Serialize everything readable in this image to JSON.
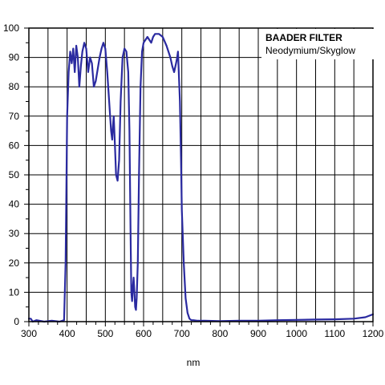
{
  "chart_data": {
    "type": "line",
    "title": "BAADER FILTER",
    "subtitle": "Neodymium/Skyglow",
    "xlabel": "nm",
    "ylabel": "",
    "xlim": [
      300,
      1200
    ],
    "ylim": [
      0,
      100
    ],
    "xticks": [
      300,
      400,
      500,
      600,
      700,
      800,
      900,
      1000,
      1100,
      1200
    ],
    "xtick_labels": [
      "300",
      "400",
      "500",
      "600",
      "700",
      "800",
      "900",
      "1000",
      "1100",
      "1200"
    ],
    "yticks": [
      0,
      10,
      20,
      30,
      40,
      50,
      60,
      70,
      80,
      90,
      100
    ],
    "ytick_labels": [
      "0",
      "10",
      "20",
      "30",
      "40",
      "50",
      "60",
      "70",
      "80",
      "90",
      "100"
    ],
    "grid": true,
    "legend_position": "top-right",
    "line_color": "#2a2aa0",
    "series": [
      {
        "x": [
          300,
          305,
          310,
          320,
          340,
          360,
          380,
          392,
          396,
          400,
          404,
          408,
          412,
          416,
          420,
          424,
          428,
          432,
          436,
          440,
          445,
          450,
          455,
          460,
          465,
          470,
          475,
          480,
          485,
          490,
          495,
          500,
          505,
          510,
          515,
          518,
          520,
          522,
          525,
          528,
          532,
          536,
          540,
          545,
          550,
          555,
          560,
          563,
          566,
          568,
          570,
          572,
          574,
          576,
          578,
          580,
          582,
          585,
          588,
          592,
          596,
          600,
          605,
          610,
          615,
          620,
          625,
          630,
          640,
          650,
          660,
          670,
          675,
          680,
          685,
          688,
          690,
          695,
          698,
          700,
          705,
          710,
          715,
          720,
          725,
          730,
          740,
          760,
          800,
          850,
          900,
          950,
          1000,
          1050,
          1100,
          1150,
          1180,
          1200
        ],
        "y": [
          1,
          1,
          0,
          0.5,
          0,
          0.3,
          0,
          0.5,
          20,
          70,
          85,
          92,
          88,
          93,
          85,
          94,
          90,
          80,
          87,
          92,
          95,
          93,
          85,
          90,
          88,
          80,
          82,
          86,
          90,
          93,
          95,
          93,
          85,
          75,
          65,
          62,
          67,
          70,
          60,
          50,
          48,
          55,
          75,
          90,
          93,
          92,
          85,
          65,
          30,
          10,
          7,
          12,
          15,
          10,
          5,
          4,
          8,
          20,
          50,
          80,
          92,
          95,
          96,
          97,
          96,
          95,
          97,
          98,
          98,
          97,
          94,
          90,
          87,
          85,
          88,
          90,
          92,
          75,
          55,
          38,
          20,
          8,
          3,
          1,
          0.5,
          0.5,
          0.3,
          0.3,
          0.2,
          0.3,
          0.3,
          0.5,
          0.6,
          0.7,
          0.8,
          1,
          1.5,
          2.5
        ]
      }
    ]
  }
}
